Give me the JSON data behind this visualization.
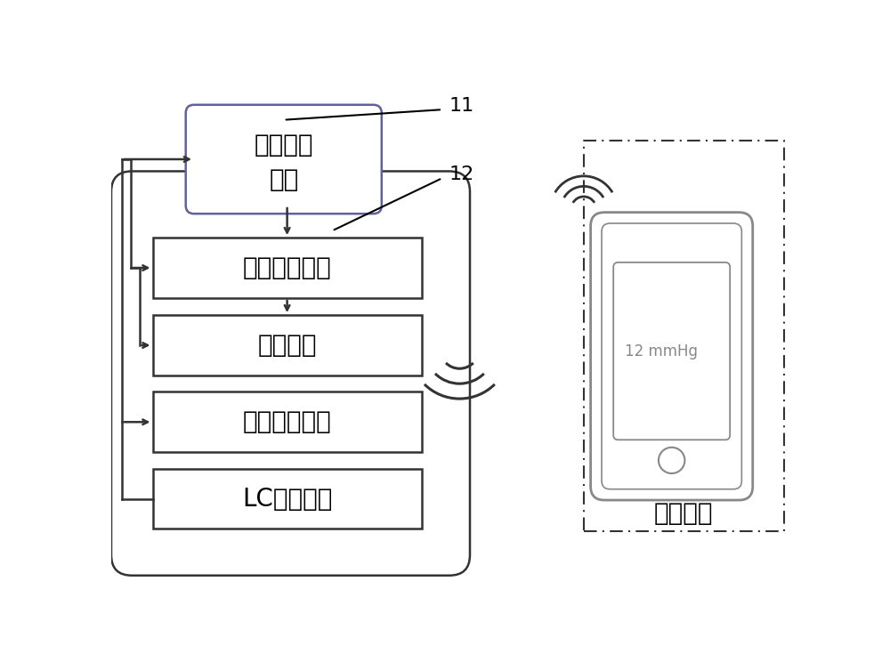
{
  "bg_color": "#ffffff",
  "line_color": "#333333",
  "gray_color": "#888888",
  "label_11": "11",
  "label_12": "12",
  "box1_text_line1": "应变感应",
  "box1_text_line2": "电路",
  "box2_text": "数模转换单元",
  "box3_text": "射频单元",
  "box4_text": "电源管理单元",
  "box5_text": "LC供能单元",
  "outer_label": "外部装置",
  "phone_text": "12 mmHg",
  "font_size_zh": 20,
  "font_size_label": 16
}
